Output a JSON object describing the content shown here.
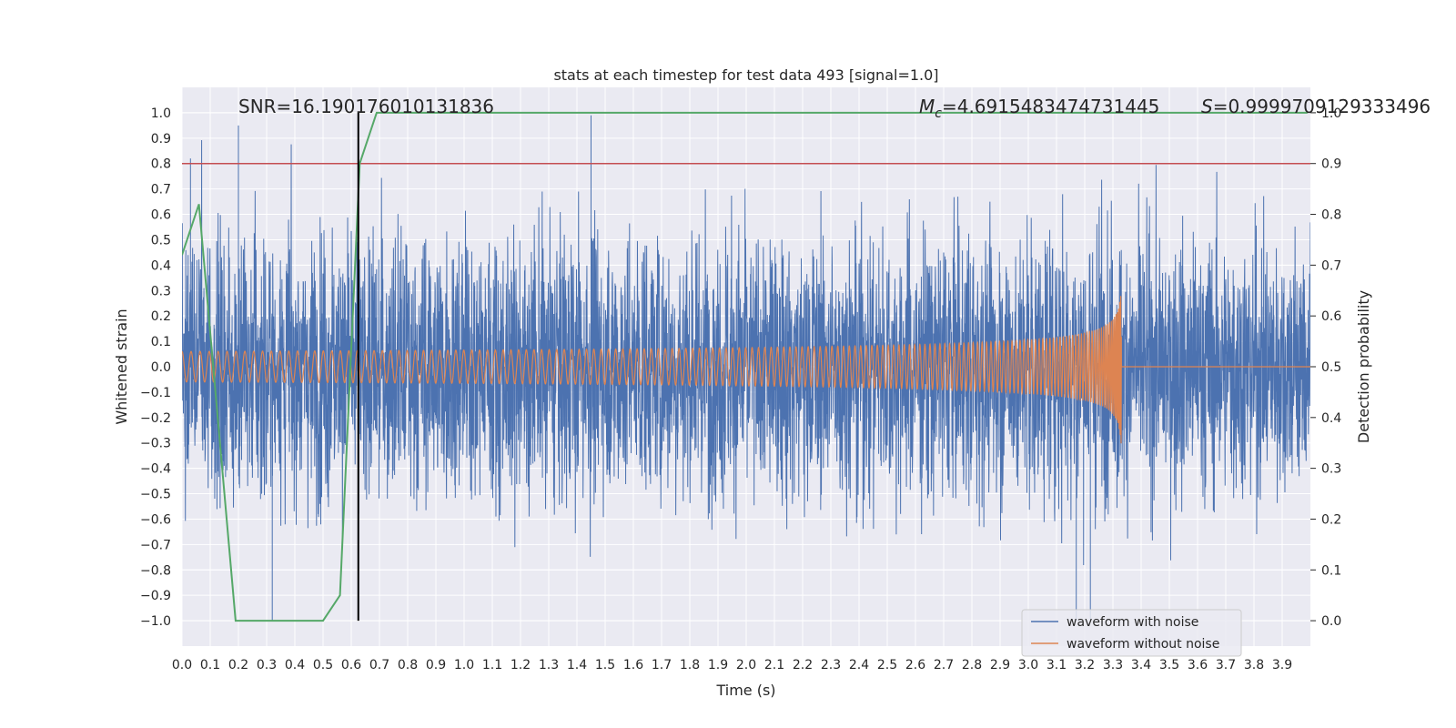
{
  "chart_data": {
    "type": "line",
    "title": "stats at each timestep for test data 493 [signal=1.0]",
    "xlabel": "Time (s)",
    "ylabel": "Whitened strain",
    "y2label": "Detection probability",
    "xlim": [
      0.0,
      4.0
    ],
    "ylim": [
      -1.1,
      1.1
    ],
    "y2lim": [
      -0.05,
      1.05
    ],
    "xticks": [
      "0.0",
      "0.1",
      "0.2",
      "0.3",
      "0.4",
      "0.5",
      "0.6",
      "0.7",
      "0.8",
      "0.9",
      "1.0",
      "1.1",
      "1.2",
      "1.3",
      "1.4",
      "1.5",
      "1.6",
      "1.7",
      "1.8",
      "1.9",
      "2.0",
      "2.1",
      "2.2",
      "2.3",
      "2.4",
      "2.5",
      "2.6",
      "2.7",
      "2.8",
      "2.9",
      "3.0",
      "3.1",
      "3.2",
      "3.3",
      "3.4",
      "3.5",
      "3.6",
      "3.7",
      "3.8",
      "3.9"
    ],
    "yticks": [
      "−1.0",
      "−0.9",
      "−0.8",
      "−0.7",
      "−0.6",
      "−0.5",
      "−0.4",
      "−0.3",
      "−0.2",
      "−0.1",
      "0.0",
      "0.1",
      "0.2",
      "0.3",
      "0.4",
      "0.5",
      "0.6",
      "0.7",
      "0.8",
      "0.9",
      "1.0"
    ],
    "y2ticks": [
      "0.0",
      "0.1",
      "0.2",
      "0.3",
      "0.4",
      "0.5",
      "0.6",
      "0.7",
      "0.8",
      "0.9",
      "1.0"
    ],
    "grid": true,
    "legend_position": "lower-right",
    "annotations": {
      "snr": "SNR=16.190176010131836",
      "mc_symbol": "M",
      "mc_sub": "c",
      "mc_value": "=4.6915483474731445",
      "s_symbol": "S",
      "s_value": "=0.9999709129333496"
    },
    "series": [
      {
        "name": "waveform with noise",
        "color": "#4c72b0",
        "kind": "noise",
        "approx_amplitude": 0.6,
        "peaks": [
          [
            0.03,
            0.82
          ],
          [
            0.2,
            0.95
          ],
          [
            1.45,
            0.99
          ],
          [
            0.32,
            -1.0
          ],
          [
            3.17,
            -1.0
          ],
          [
            3.22,
            -1.0
          ]
        ]
      },
      {
        "name": "waveform without noise",
        "color": "#dd8452",
        "kind": "chirp",
        "start_amplitude": 0.06,
        "peak_amplitude": 0.55,
        "merger_time": 3.33
      },
      {
        "color": "#55a868",
        "axis": "right",
        "x": [
          0.0,
          0.06,
          0.19,
          0.25,
          0.5,
          0.56,
          0.63,
          0.69,
          1.0,
          2.0,
          3.0,
          3.99
        ],
        "values": [
          0.72,
          0.82,
          0.0,
          0.0,
          0.0,
          0.05,
          0.9,
          1.0,
          1.0,
          1.0,
          1.0,
          1.0
        ]
      }
    ],
    "threshold": {
      "axis": "right",
      "value": 0.9,
      "color": "#c44e52"
    },
    "vline": {
      "x": 0.625,
      "color": "#000000"
    }
  }
}
